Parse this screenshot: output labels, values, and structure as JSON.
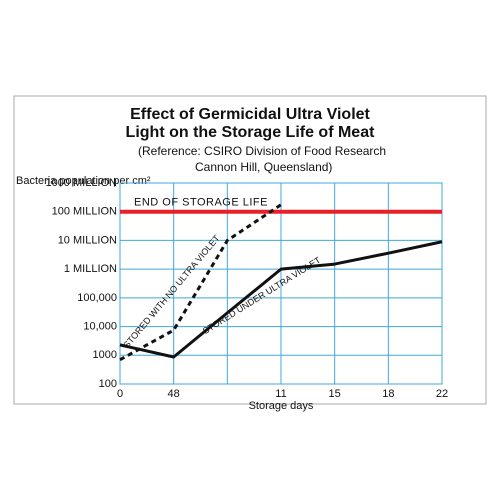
{
  "chart_data": {
    "type": "line",
    "title": [
      "Effect of Germicidal Ultra Violet",
      "Light on the Storage Life of Meat"
    ],
    "subtitle": [
      "(Reference: CSIRO Division of Food Research",
      "Cannon Hill, Queensland)"
    ],
    "ylabel": "Bacteria population per cm²",
    "xlabel": "Storage days",
    "categories": [
      "0",
      "48",
      null,
      "11",
      "15",
      "18",
      "22"
    ],
    "series": [
      {
        "name": "STORED WITH NO ULTRA VIOLET",
        "color": "#111111",
        "dashed": true,
        "values": [
          700,
          7500,
          10000000,
          175000000,
          null,
          null,
          null
        ]
      },
      {
        "name": "STORED UNDER ULTRA VIOLET",
        "color": "#111111",
        "dashed": false,
        "values": [
          2300,
          870,
          30000,
          1000000,
          1500000,
          3600000,
          9000000
        ]
      }
    ],
    "threshold": {
      "value": 100000000,
      "label": "END OF STORAGE LIFE",
      "color": "#e8202a"
    },
    "log_y": true,
    "ylim": [
      100,
      1000000000
    ],
    "yticks": [
      100,
      1000,
      {
        "value": 10000,
        "label": "10,000"
      },
      {
        "value": 100000,
        "label": "100,000"
      },
      {
        "value": 1000000,
        "label": "1 MILLION"
      },
      {
        "value": 10000000,
        "label": "10 MILLION"
      },
      {
        "value": 100000000,
        "label": "100 MILLION"
      },
      {
        "value": 1000000000,
        "label": "1000 MILLION"
      }
    ],
    "grid": true,
    "grid_color": "#3fa9d8"
  }
}
